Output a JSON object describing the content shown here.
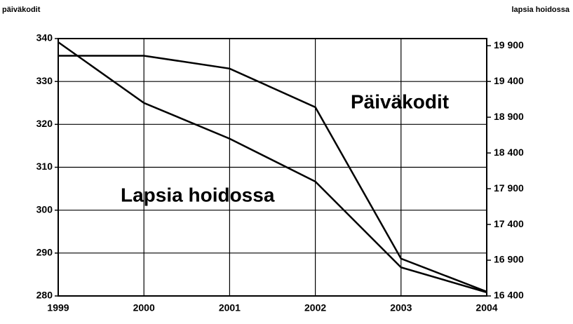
{
  "chart_data": {
    "type": "line",
    "ylabel": "päiväkodit",
    "y2label": "lapsia hoidossa",
    "x": [
      1999,
      2000,
      2001,
      2002,
      2003,
      2004
    ],
    "xlim": [
      1999,
      2004
    ],
    "xticks": [
      1999,
      2000,
      2001,
      2002,
      2003,
      2004
    ],
    "ylim": [
      280,
      340
    ],
    "yticks": [
      280,
      290,
      300,
      310,
      320,
      330,
      340
    ],
    "y2lim": [
      16400,
      20000
    ],
    "y2ticks": [
      {
        "value": 16400,
        "label": "16 400"
      },
      {
        "value": 16900,
        "label": "16 900"
      },
      {
        "value": 17400,
        "label": "17 400"
      },
      {
        "value": 17900,
        "label": "17 900"
      },
      {
        "value": 18400,
        "label": "18 400"
      },
      {
        "value": 18900,
        "label": "18 900"
      },
      {
        "value": 19400,
        "label": "19 400"
      },
      {
        "value": 19900,
        "label": "19 900"
      }
    ],
    "grid": true,
    "series": [
      {
        "name": "Päiväkodit",
        "color": "#000000",
        "values": [
          336,
          336,
          333,
          324,
          288.7,
          281
        ]
      },
      {
        "name": "Lapsia hoidossa",
        "color": "#000000",
        "axis": "y2",
        "values": [
          19950,
          19100,
          18600,
          18000,
          16800,
          16450
        ]
      }
    ]
  }
}
